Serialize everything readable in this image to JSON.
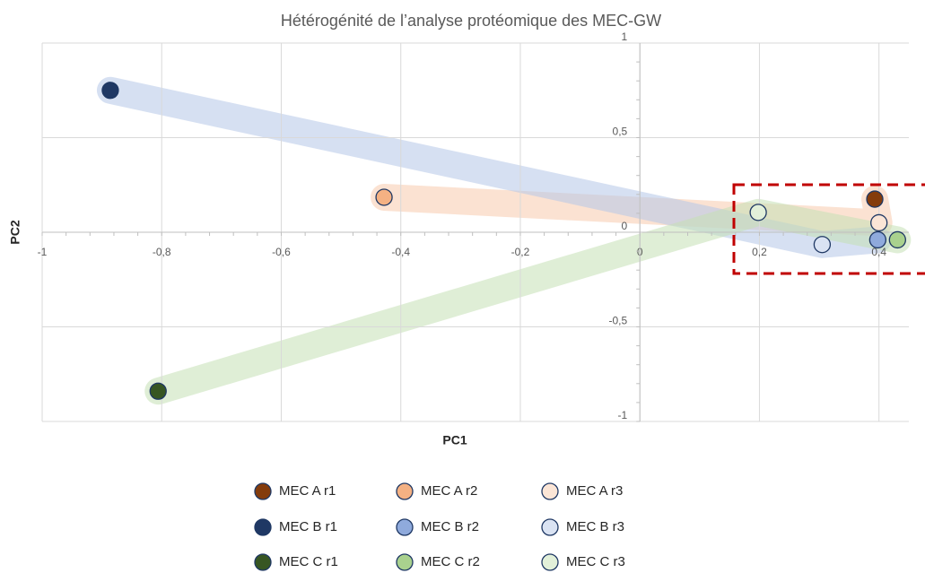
{
  "chart_data": {
    "type": "scatter",
    "title": "Hétérogénité de l’analyse protéomique des MEC-GW",
    "x_label": "PC1",
    "y_label": "PC2",
    "xlim": [
      -1,
      0.45
    ],
    "ylim": [
      -1,
      1
    ],
    "xticks": [
      -1,
      {
        "value": -0.8,
        "label": "-0,8"
      },
      {
        "value": -0.6,
        "label": "-0,6"
      },
      {
        "value": -0.4,
        "label": "-0,4"
      },
      {
        "value": -0.2,
        "label": "-0,2"
      },
      0,
      {
        "value": 0.2,
        "label": "0,2"
      },
      {
        "value": 0.4,
        "label": "0,4"
      }
    ],
    "yticks": [
      -1,
      {
        "value": -0.5,
        "label": "-0,5"
      },
      0,
      {
        "value": 0.5,
        "label": "0,5"
      },
      1
    ],
    "grid": true,
    "series": [
      {
        "name": "MEC A r1",
        "color": "#843c0c",
        "x": [
          0.393
        ],
        "values": [
          0.175
        ]
      },
      {
        "name": "MEC A r2",
        "color": "#f4b183",
        "x": [
          -0.428
        ],
        "values": [
          0.185
        ]
      },
      {
        "name": "MEC A r3",
        "color": "#fbe5d6",
        "x": [
          0.4
        ],
        "values": [
          0.05
        ]
      },
      {
        "name": "MEC B r1",
        "color": "#1f3864",
        "x": [
          -0.886
        ],
        "values": [
          0.75
        ]
      },
      {
        "name": "MEC B r2",
        "color": "#8faadc",
        "x": [
          0.398
        ],
        "values": [
          -0.04
        ]
      },
      {
        "name": "MEC B r3",
        "color": "#dae3f3",
        "x": [
          0.305
        ],
        "values": [
          -0.065
        ]
      },
      {
        "name": "MEC C r1",
        "color": "#375623",
        "x": [
          -0.806
        ],
        "values": [
          -0.84
        ]
      },
      {
        "name": "MEC C r2",
        "color": "#a9d18e",
        "x": [
          0.431
        ],
        "values": [
          -0.04
        ]
      },
      {
        "name": "MEC C r3",
        "color": "#e2f0d9",
        "x": [
          0.198
        ],
        "values": [
          0.105
        ]
      }
    ]
  }
}
